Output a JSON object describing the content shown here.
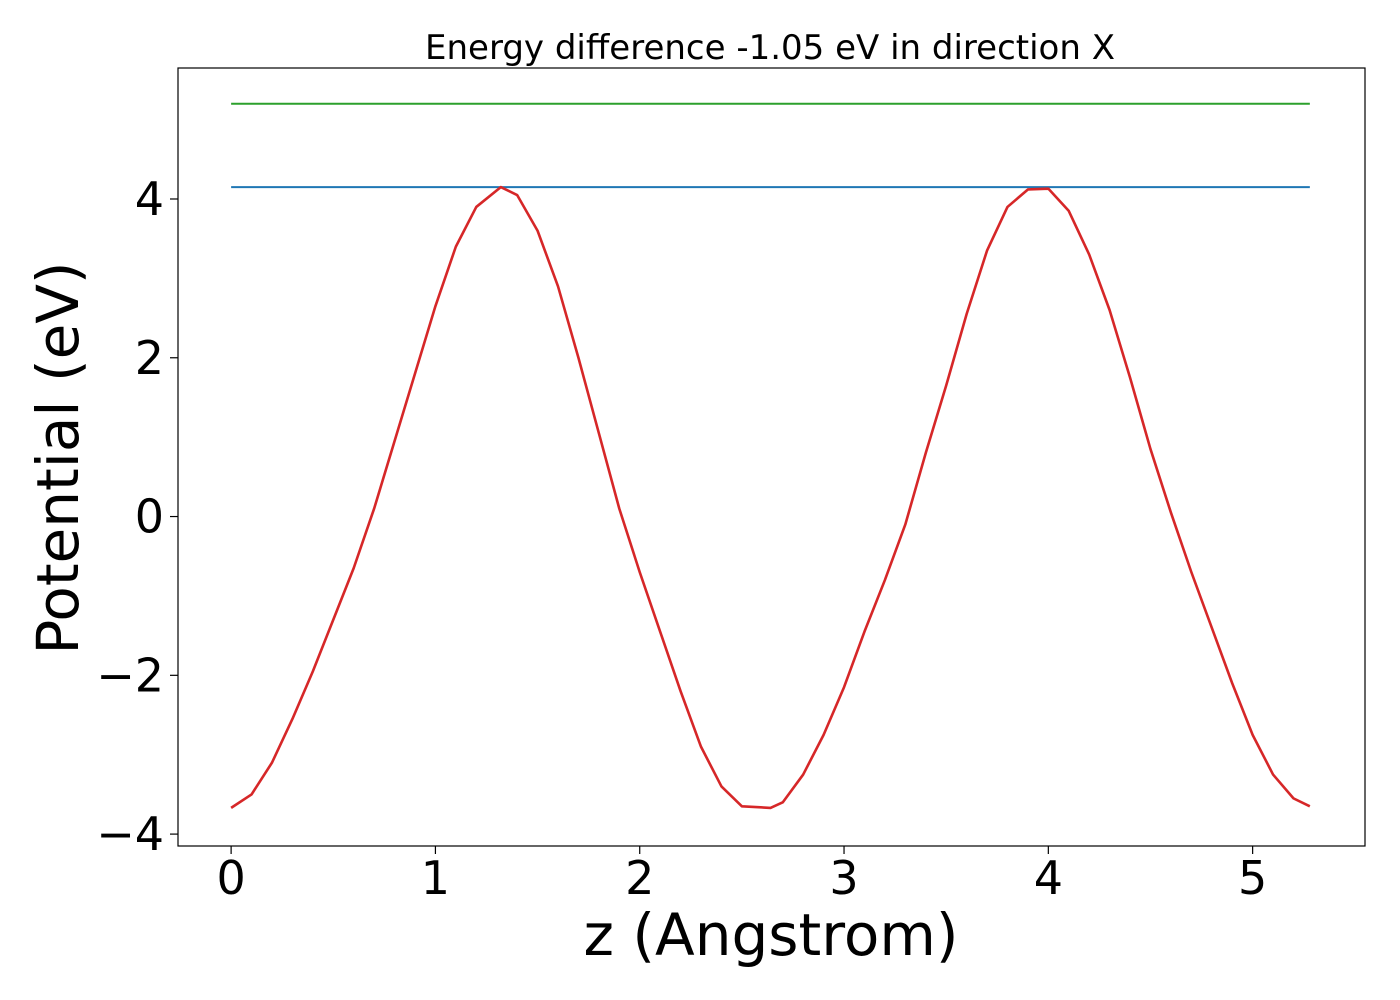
{
  "chart_data": {
    "type": "line",
    "title": "Energy difference -1.05 eV in direction X",
    "xlabel": "z (Angstrom)",
    "ylabel": "Potential (eV)",
    "xlim": [
      -0.26,
      5.55
    ],
    "ylim": [
      -4.15,
      5.65
    ],
    "grid": false,
    "xticks": [
      0,
      1,
      2,
      3,
      4,
      5
    ],
    "yticks": [
      -4,
      -2,
      0,
      2,
      4
    ],
    "xtick_labels": [
      "0",
      "1",
      "2",
      "3",
      "4",
      "5"
    ],
    "ytick_labels": [
      "−4",
      "−2",
      "0",
      "2",
      "4"
    ],
    "series": [
      {
        "color": "#2ca02c",
        "kind": "hline",
        "x": [
          0,
          5.28
        ],
        "y": [
          5.2,
          5.2
        ]
      },
      {
        "color": "#1f77b4",
        "kind": "hline",
        "x": [
          0,
          5.28
        ],
        "y": [
          4.15,
          4.15
        ]
      },
      {
        "color": "#d62728",
        "kind": "curve",
        "x": [
          0,
          0.1,
          0.2,
          0.3,
          0.4,
          0.5,
          0.6,
          0.7,
          0.8,
          0.9,
          1.0,
          1.1,
          1.2,
          1.32,
          1.4,
          1.5,
          1.6,
          1.7,
          1.8,
          1.9,
          2.0,
          2.1,
          2.2,
          2.3,
          2.4,
          2.5,
          2.64,
          2.7,
          2.8,
          2.9,
          3.0,
          3.1,
          3.2,
          3.3,
          3.4,
          3.5,
          3.6,
          3.7,
          3.8,
          3.9,
          4.0,
          4.1,
          4.2,
          4.3,
          4.4,
          4.5,
          4.6,
          4.7,
          4.8,
          4.9,
          5.0,
          5.1,
          5.2,
          5.28
        ],
        "y": [
          -3.67,
          -3.5,
          -3.1,
          -2.55,
          -1.95,
          -1.3,
          -0.65,
          0.1,
          0.95,
          1.8,
          2.65,
          3.4,
          3.9,
          4.15,
          4.05,
          3.6,
          2.9,
          2.0,
          1.05,
          0.1,
          -0.7,
          -1.45,
          -2.2,
          -2.9,
          -3.4,
          -3.65,
          -3.67,
          -3.6,
          -3.25,
          -2.75,
          -2.15,
          -1.45,
          -0.8,
          -0.1,
          0.8,
          1.65,
          2.55,
          3.35,
          3.9,
          4.12,
          4.13,
          3.85,
          3.3,
          2.6,
          1.75,
          0.85,
          0.05,
          -0.7,
          -1.4,
          -2.1,
          -2.75,
          -3.25,
          -3.55,
          -3.65
        ]
      }
    ]
  }
}
